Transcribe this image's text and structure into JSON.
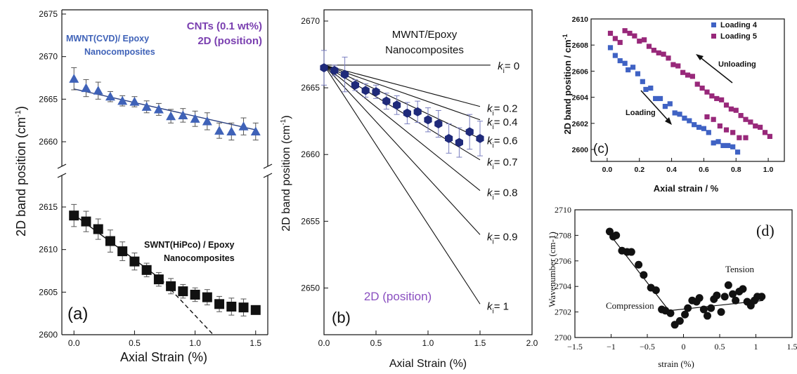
{
  "colors": {
    "panel_a_mwnt": "#3f62b8",
    "panel_a_swnt": "#111111",
    "panel_a_header": "#7a3fb0",
    "panel_b_points": "#1f2a7a",
    "panel_b_label": "#8a4fc0",
    "panel_c_loading4": "#3f62c4",
    "panel_c_loading5": "#98287a",
    "panel_d_points": "#111111"
  },
  "chart_data": [
    {
      "id": "a",
      "type": "scatter",
      "panel_label": "(a)",
      "xlabel": "Axial Strain (%)",
      "ylabel": "2D band position (cm",
      "ylabel_sup": "-1",
      "ylabel_tail": ")",
      "header_line1": "CNTs (0.1 wt%)",
      "header_line2": "2D (position)",
      "xlim": [
        -0.1,
        1.6
      ],
      "x_ticks": [
        0.0,
        0.5,
        1.0,
        1.5
      ],
      "x_tick_labels": [
        "0.0",
        "0.5",
        "1.0",
        "1.5"
      ],
      "upper_y_ticks": [
        2660,
        2665,
        2670,
        2675
      ],
      "lower_y_ticks": [
        2600,
        2605,
        2610,
        2615
      ],
      "axis_break": true,
      "series": [
        {
          "name": "MWNT(CVD)/ Epoxy Nanocomposites",
          "label_line1": "MWNT(CVD)/ Epoxy",
          "label_line2": "Nanocomposites",
          "marker": "triangle",
          "x": [
            0.0,
            0.1,
            0.2,
            0.3,
            0.4,
            0.5,
            0.6,
            0.7,
            0.8,
            0.9,
            1.0,
            1.1,
            1.2,
            1.3,
            1.4,
            1.5
          ],
          "y": [
            2667.4,
            2666.3,
            2666.0,
            2665.3,
            2664.8,
            2664.7,
            2664.1,
            2663.8,
            2663.0,
            2663.1,
            2662.7,
            2662.4,
            2661.3,
            2661.2,
            2661.8,
            2661.2
          ],
          "err": [
            1.3,
            1.0,
            1.0,
            0.6,
            0.6,
            0.6,
            0.7,
            0.7,
            0.8,
            0.8,
            0.9,
            1.0,
            0.9,
            1.0,
            1.0,
            1.0
          ],
          "fit": {
            "x": [
              0.0,
              1.5
            ],
            "y": [
              2666.2,
              2661.4
            ]
          }
        },
        {
          "name": "SWNT(HiPco) / Epoxy Nanocomposites",
          "label_line1": "SWNT(HiPco) / Epoxy",
          "label_line2": "Nanocomposites",
          "marker": "square",
          "x": [
            0.0,
            0.1,
            0.2,
            0.3,
            0.4,
            0.5,
            0.6,
            0.7,
            0.8,
            0.9,
            1.0,
            1.1,
            1.2,
            1.3,
            1.4,
            1.5
          ],
          "y": [
            2614.0,
            2613.3,
            2612.4,
            2611.0,
            2609.8,
            2608.6,
            2607.6,
            2606.5,
            2605.7,
            2605.1,
            2604.7,
            2604.4,
            2603.6,
            2603.3,
            2603.2,
            2602.9
          ],
          "err": [
            1.3,
            1.2,
            1.2,
            1.3,
            1.1,
            1.0,
            0.8,
            0.8,
            0.9,
            0.8,
            0.8,
            0.9,
            0.9,
            1.0,
            1.0,
            0.0
          ],
          "fit": {
            "x": [
              0.0,
              0.72
            ],
            "y": [
              2614.1,
              2606.5
            ]
          },
          "fit_dashed": {
            "x": [
              0.72,
              1.15
            ],
            "y": [
              2606.5,
              2600.0
            ]
          }
        }
      ]
    },
    {
      "id": "b",
      "type": "scatter",
      "panel_label": "(b)",
      "xlabel": "Axial Strain (%)",
      "ylabel": "2D band position (cm",
      "ylabel_sup": "-1",
      "ylabel_tail": ")",
      "title_line1": "MWNT/Epoxy",
      "title_line2": "Nanocomposites",
      "series_label": "2D (position)",
      "xlim": [
        0.0,
        2.0
      ],
      "ylim": [
        2646.5,
        2670
      ],
      "x_ticks": [
        0.0,
        0.5,
        1.0,
        1.5,
        2.0
      ],
      "x_tick_labels": [
        "0.0",
        "0.5",
        "1.0",
        "1.5",
        "2.0"
      ],
      "y_ticks": [
        2650,
        2655,
        2660,
        2665,
        2670
      ],
      "series": [
        {
          "name": "MWNT/Epoxy",
          "marker": "hexagon",
          "x": [
            0.0,
            0.1,
            0.2,
            0.3,
            0.4,
            0.5,
            0.6,
            0.7,
            0.8,
            0.9,
            1.0,
            1.1,
            1.2,
            1.3,
            1.4,
            1.5
          ],
          "y": [
            2666.5,
            2666.3,
            2666.0,
            2665.2,
            2664.8,
            2664.7,
            2664.0,
            2663.7,
            2663.1,
            2663.2,
            2662.6,
            2662.3,
            2661.2,
            2660.9,
            2661.7,
            2661.2
          ],
          "err": [
            1.3,
            0.4,
            1.3,
            0.4,
            0.5,
            0.5,
            0.6,
            0.7,
            0.8,
            0.8,
            0.9,
            1.0,
            1.1,
            1.1,
            1.3,
            1.3
          ]
        }
      ],
      "model_lines": {
        "origin": [
          0.0,
          2666.7
        ],
        "x_end": 1.5,
        "k_labels": [
          "0",
          "0.2",
          "0.4",
          "0.6",
          "0.7",
          "0.8",
          "0.9",
          "1"
        ],
        "k_prefix": "k",
        "k_sub": "i",
        "y_end": [
          2666.7,
          2663.6,
          2662.6,
          2661.2,
          2659.6,
          2657.3,
          2654.0,
          2648.8
        ]
      }
    },
    {
      "id": "c",
      "type": "scatter",
      "panel_label": "(c)",
      "xlabel": "Axial strain / %",
      "ylabel": "2D band position / cm",
      "ylabel_sup": "-1",
      "xlim": [
        -0.1,
        1.1
      ],
      "ylim": [
        2599.4,
        2610
      ],
      "x_ticks": [
        0.0,
        0.2,
        0.4,
        0.6,
        0.8,
        1.0
      ],
      "x_tick_labels": [
        "0.0",
        "0.2",
        "0.4",
        "0.6",
        "0.8",
        "1.0"
      ],
      "y_ticks": [
        2600,
        2602,
        2604,
        2606,
        2608,
        2610
      ],
      "legend_position": "top-right",
      "annotations": [
        "Unloading",
        "Loading"
      ],
      "series": [
        {
          "name": "Loading 4",
          "marker": "square",
          "x": [
            0.02,
            0.05,
            0.08,
            0.11,
            0.13,
            0.16,
            0.19,
            0.22,
            0.24,
            0.27,
            0.3,
            0.33,
            0.36,
            0.39,
            0.42,
            0.45,
            0.48,
            0.51,
            0.54,
            0.57,
            0.6,
            0.63,
            0.66,
            0.69,
            0.72,
            0.75,
            0.78,
            0.81
          ],
          "y": [
            2607.8,
            2607.2,
            2606.8,
            2606.6,
            2606.1,
            2606.3,
            2605.8,
            2605.2,
            2604.6,
            2604.7,
            2603.9,
            2603.9,
            2603.3,
            2603.5,
            2602.8,
            2602.7,
            2602.4,
            2602.2,
            2601.9,
            2601.7,
            2601.6,
            2601.3,
            2600.5,
            2600.6,
            2600.3,
            2600.3,
            2600.2,
            2599.8
          ]
        },
        {
          "name": "Loading 5",
          "marker": "square",
          "x": [
            0.02,
            0.05,
            0.08,
            0.11,
            0.14,
            0.17,
            0.2,
            0.23,
            0.26,
            0.29,
            0.32,
            0.35,
            0.38,
            0.41,
            0.44,
            0.47,
            0.5,
            0.53,
            0.56,
            0.59,
            0.62,
            0.65,
            0.68,
            0.71,
            0.74,
            0.77,
            0.8,
            0.83,
            0.86,
            0.89,
            0.92,
            0.95,
            0.98,
            1.01,
            0.62,
            0.66,
            0.7,
            0.74,
            0.78,
            0.82,
            0.86
          ],
          "y": [
            2608.9,
            2608.5,
            2608.2,
            2609.1,
            2608.9,
            2608.7,
            2608.3,
            2608.4,
            2607.9,
            2607.6,
            2607.4,
            2607.3,
            2607.0,
            2606.5,
            2606.4,
            2605.9,
            2605.7,
            2605.6,
            2605.0,
            2604.7,
            2604.4,
            2604.1,
            2603.9,
            2603.8,
            2603.4,
            2603.1,
            2603.0,
            2602.6,
            2602.3,
            2602.1,
            2601.8,
            2601.7,
            2601.3,
            2601.0,
            2602.5,
            2602.3,
            2601.8,
            2601.5,
            2601.3,
            2600.9,
            2600.9
          ]
        }
      ]
    },
    {
      "id": "d",
      "type": "scatter",
      "panel_label": "(d)",
      "xlabel": "strain (%)",
      "ylabel": "Wavenumber (cm-1)",
      "xlim": [
        -1.5,
        1.5
      ],
      "ylim": [
        2700,
        2710
      ],
      "x_ticks": [
        -1.5,
        -1.0,
        -0.5,
        0.0,
        0.5,
        1.0,
        1.5
      ],
      "x_tick_labels": [
        "−1.5",
        "−1",
        "−0.5",
        "0",
        "0.5",
        "1",
        "1.5"
      ],
      "y_ticks": [
        2700,
        2702,
        2704,
        2706,
        2708,
        2710
      ],
      "annotations": [
        "Tension",
        "Compression"
      ],
      "series": [
        {
          "name": "",
          "marker": "circle",
          "x": [
            -1.02,
            -0.97,
            -0.93,
            -0.85,
            -0.78,
            -0.72,
            -0.62,
            -0.55,
            -0.45,
            -0.38,
            -0.3,
            -0.25,
            -0.18,
            -0.12,
            -0.05,
            0.02,
            0.06,
            0.12,
            0.18,
            0.22,
            0.28,
            0.33,
            0.38,
            0.42,
            0.46,
            0.52,
            0.57,
            0.62,
            0.68,
            0.72,
            0.77,
            0.82,
            0.88,
            0.93,
            0.98,
            1.02,
            1.08
          ],
          "y": [
            2708.3,
            2707.9,
            2708.0,
            2706.8,
            2706.7,
            2706.7,
            2705.7,
            2704.9,
            2703.9,
            2703.7,
            2702.2,
            2702.1,
            2701.9,
            2701.0,
            2701.3,
            2701.8,
            2702.3,
            2702.9,
            2702.8,
            2703.1,
            2702.2,
            2701.7,
            2702.3,
            2703.0,
            2703.3,
            2702.0,
            2703.2,
            2704.1,
            2703.4,
            2702.9,
            2703.6,
            2703.8,
            2702.8,
            2702.5,
            2702.9,
            2703.2,
            2703.2
          ]
        }
      ],
      "fit_lines": [
        {
          "x": [
            -1.05,
            -0.2
          ],
          "y": [
            2708.3,
            2702.1
          ]
        },
        {
          "x": [
            -0.2,
            1.1
          ],
          "y": [
            2702.1,
            2702.9
          ]
        }
      ]
    }
  ]
}
